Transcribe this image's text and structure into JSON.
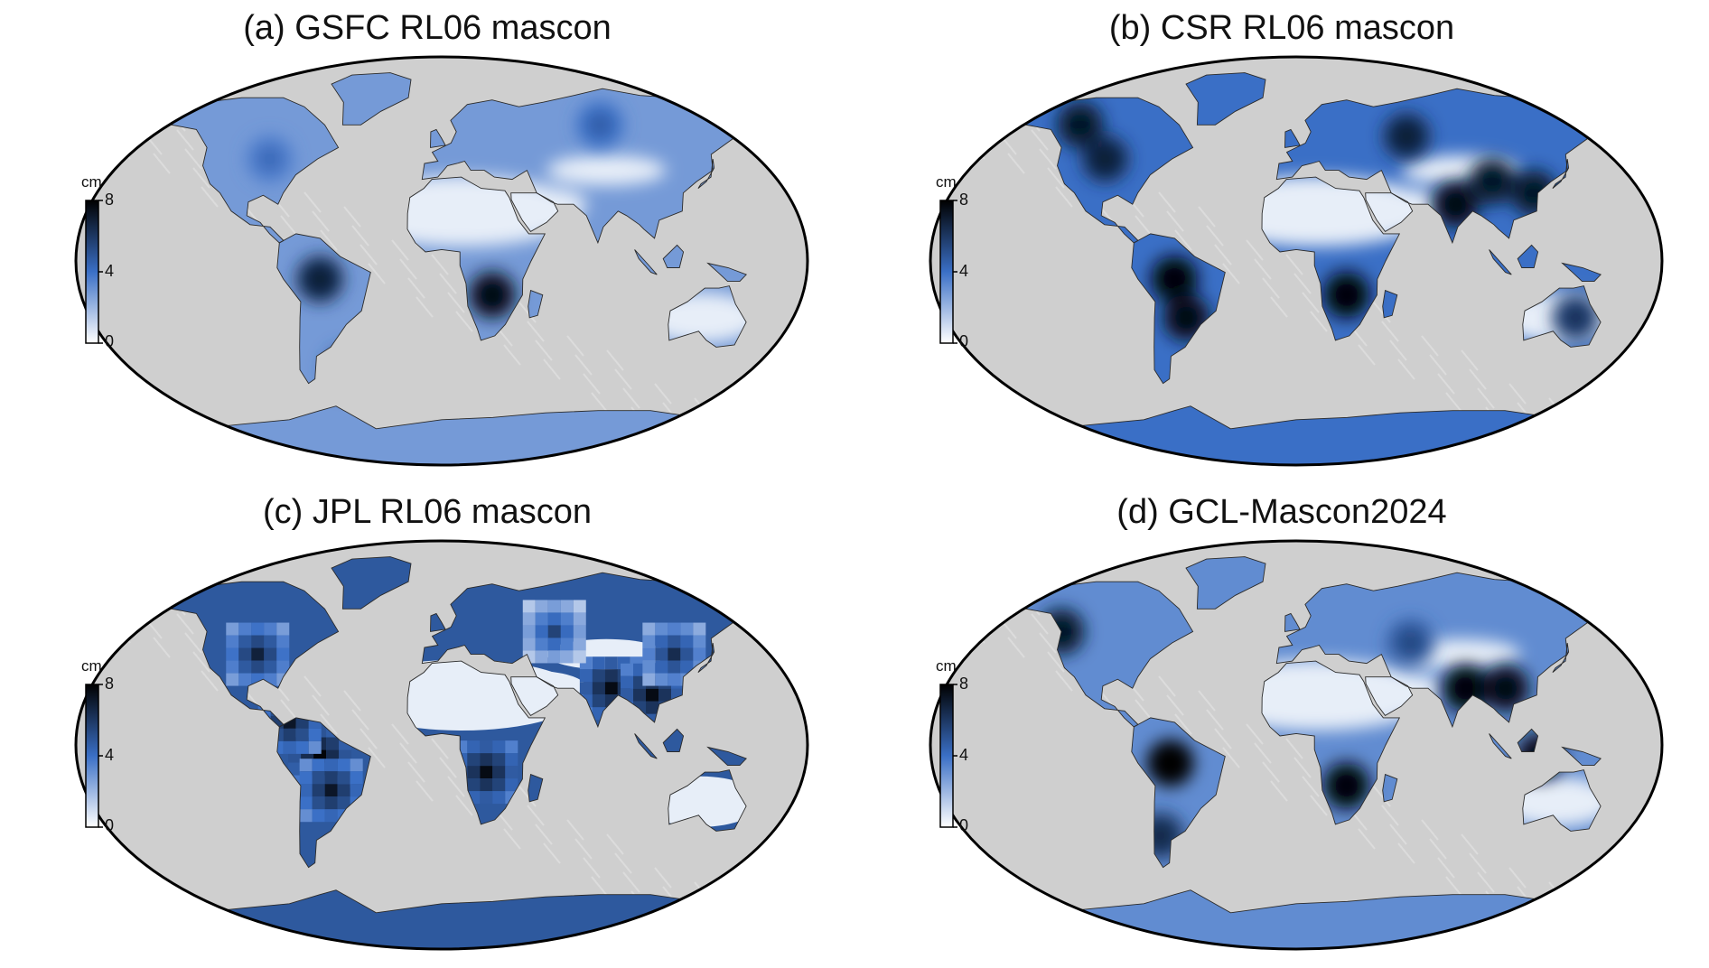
{
  "colors": {
    "ocean": "#cfcfcf",
    "ocean_relief": "#e8e8e8",
    "land_low": "#f2f4f7",
    "land_mid": "#4f7fd0",
    "land_high": "#050a14",
    "coast": "#2b2b2b",
    "frame": "#000000"
  },
  "colorbar": {
    "unit": "cm",
    "ticks": [
      "8",
      "4",
      "0"
    ],
    "range": [
      0,
      8
    ],
    "colormap": [
      "#ffffff",
      "#3a6fc6",
      "#000000"
    ]
  },
  "panels": [
    {
      "id": "a",
      "title": "(a) GSFC RL06 mascon",
      "style": "smooth",
      "overall": 0.35,
      "hotspots": [
        [
          -60,
          -8,
          0.8
        ],
        [
          25,
          -15,
          0.9
        ],
        [
          88,
          60,
          0.5
        ],
        [
          -90,
          45,
          0.45
        ],
        [
          -50,
          -48,
          0.6
        ]
      ]
    },
    {
      "id": "b",
      "title": "(b) CSR RL06 mascon",
      "style": "smooth",
      "overall": 0.5,
      "hotspots": [
        [
          -60,
          -8,
          0.95
        ],
        [
          -55,
          -25,
          0.9
        ],
        [
          25,
          -15,
          0.95
        ],
        [
          80,
          25,
          0.9
        ],
        [
          100,
          35,
          0.85
        ],
        [
          120,
          30,
          0.85
        ],
        [
          60,
          55,
          0.8
        ],
        [
          -100,
          45,
          0.8
        ],
        [
          -120,
          60,
          0.85
        ],
        [
          140,
          -25,
          0.7
        ]
      ]
    },
    {
      "id": "c",
      "title": "(c) JPL RL06 mascon",
      "style": "blocky",
      "overall": 0.6,
      "hotspots": [
        [
          -60,
          -5,
          0.98
        ],
        [
          -55,
          -20,
          0.9
        ],
        [
          22,
          -12,
          0.95
        ],
        [
          85,
          25,
          0.95
        ],
        [
          105,
          22,
          0.95
        ],
        [
          60,
          50,
          0.7
        ],
        [
          -95,
          40,
          0.85
        ],
        [
          -75,
          10,
          0.9
        ],
        [
          120,
          40,
          0.8
        ]
      ]
    },
    {
      "id": "d",
      "title": "(d) GCL-Mascon2024",
      "style": "smooth",
      "overall": 0.4,
      "hotspots": [
        [
          -62,
          -8,
          1.0
        ],
        [
          25,
          -18,
          0.95
        ],
        [
          85,
          25,
          0.95
        ],
        [
          105,
          25,
          0.9
        ],
        [
          -125,
          50,
          0.85
        ],
        [
          120,
          -5,
          0.9
        ],
        [
          -70,
          -40,
          0.75
        ],
        [
          60,
          45,
          0.6
        ]
      ]
    }
  ]
}
